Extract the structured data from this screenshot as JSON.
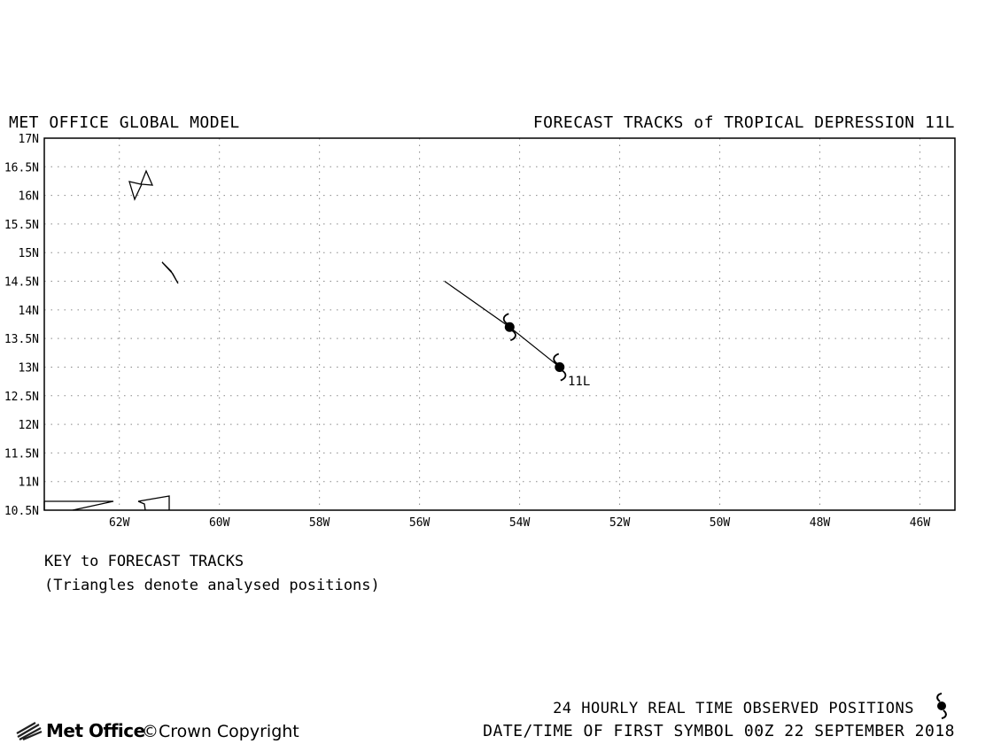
{
  "header": {
    "left_title": "MET OFFICE GLOBAL MODEL",
    "right_title": "FORECAST TRACKS of TROPICAL DEPRESSION 11L"
  },
  "map": {
    "lat_labels": [
      "17N",
      "16.5N",
      "16N",
      "15.5N",
      "15N",
      "14.5N",
      "14N",
      "13.5N",
      "13N",
      "12.5N",
      "12N",
      "11.5N",
      "11N",
      "10.5N"
    ],
    "lon_labels": [
      "62W",
      "60W",
      "58W",
      "56W",
      "54W",
      "52W",
      "50W",
      "48W",
      "46W"
    ],
    "lat_range": [
      10.5,
      17
    ],
    "lon_range_west": [
      63.5,
      45.3
    ],
    "grid": "dotted",
    "storm": {
      "id": "11L",
      "track": [
        {
          "lon": -55.5,
          "lat": 14.5
        },
        {
          "lon": -54.2,
          "lat": 13.7
        },
        {
          "lon": -53.2,
          "lat": 13.0
        }
      ],
      "observed_positions": [
        {
          "lon": -54.2,
          "lat": 13.7
        },
        {
          "lon": -53.2,
          "lat": 13.0
        }
      ]
    },
    "track_color": "#000000"
  },
  "key": {
    "title": "KEY to FORECAST TRACKS",
    "note": "(Triangles denote analysed positions)"
  },
  "footer": {
    "logo_text": "Met Office",
    "copyright": "©Crown Copyright",
    "observed_label": "24 HOURLY REAL TIME OBSERVED POSITIONS",
    "datetime": "DATE/TIME OF FIRST SYMBOL 00Z 22 SEPTEMBER 2018"
  },
  "icons": {
    "storm_symbol": "tropical-cyclone-icon",
    "logo": "met-office-logo-icon"
  }
}
